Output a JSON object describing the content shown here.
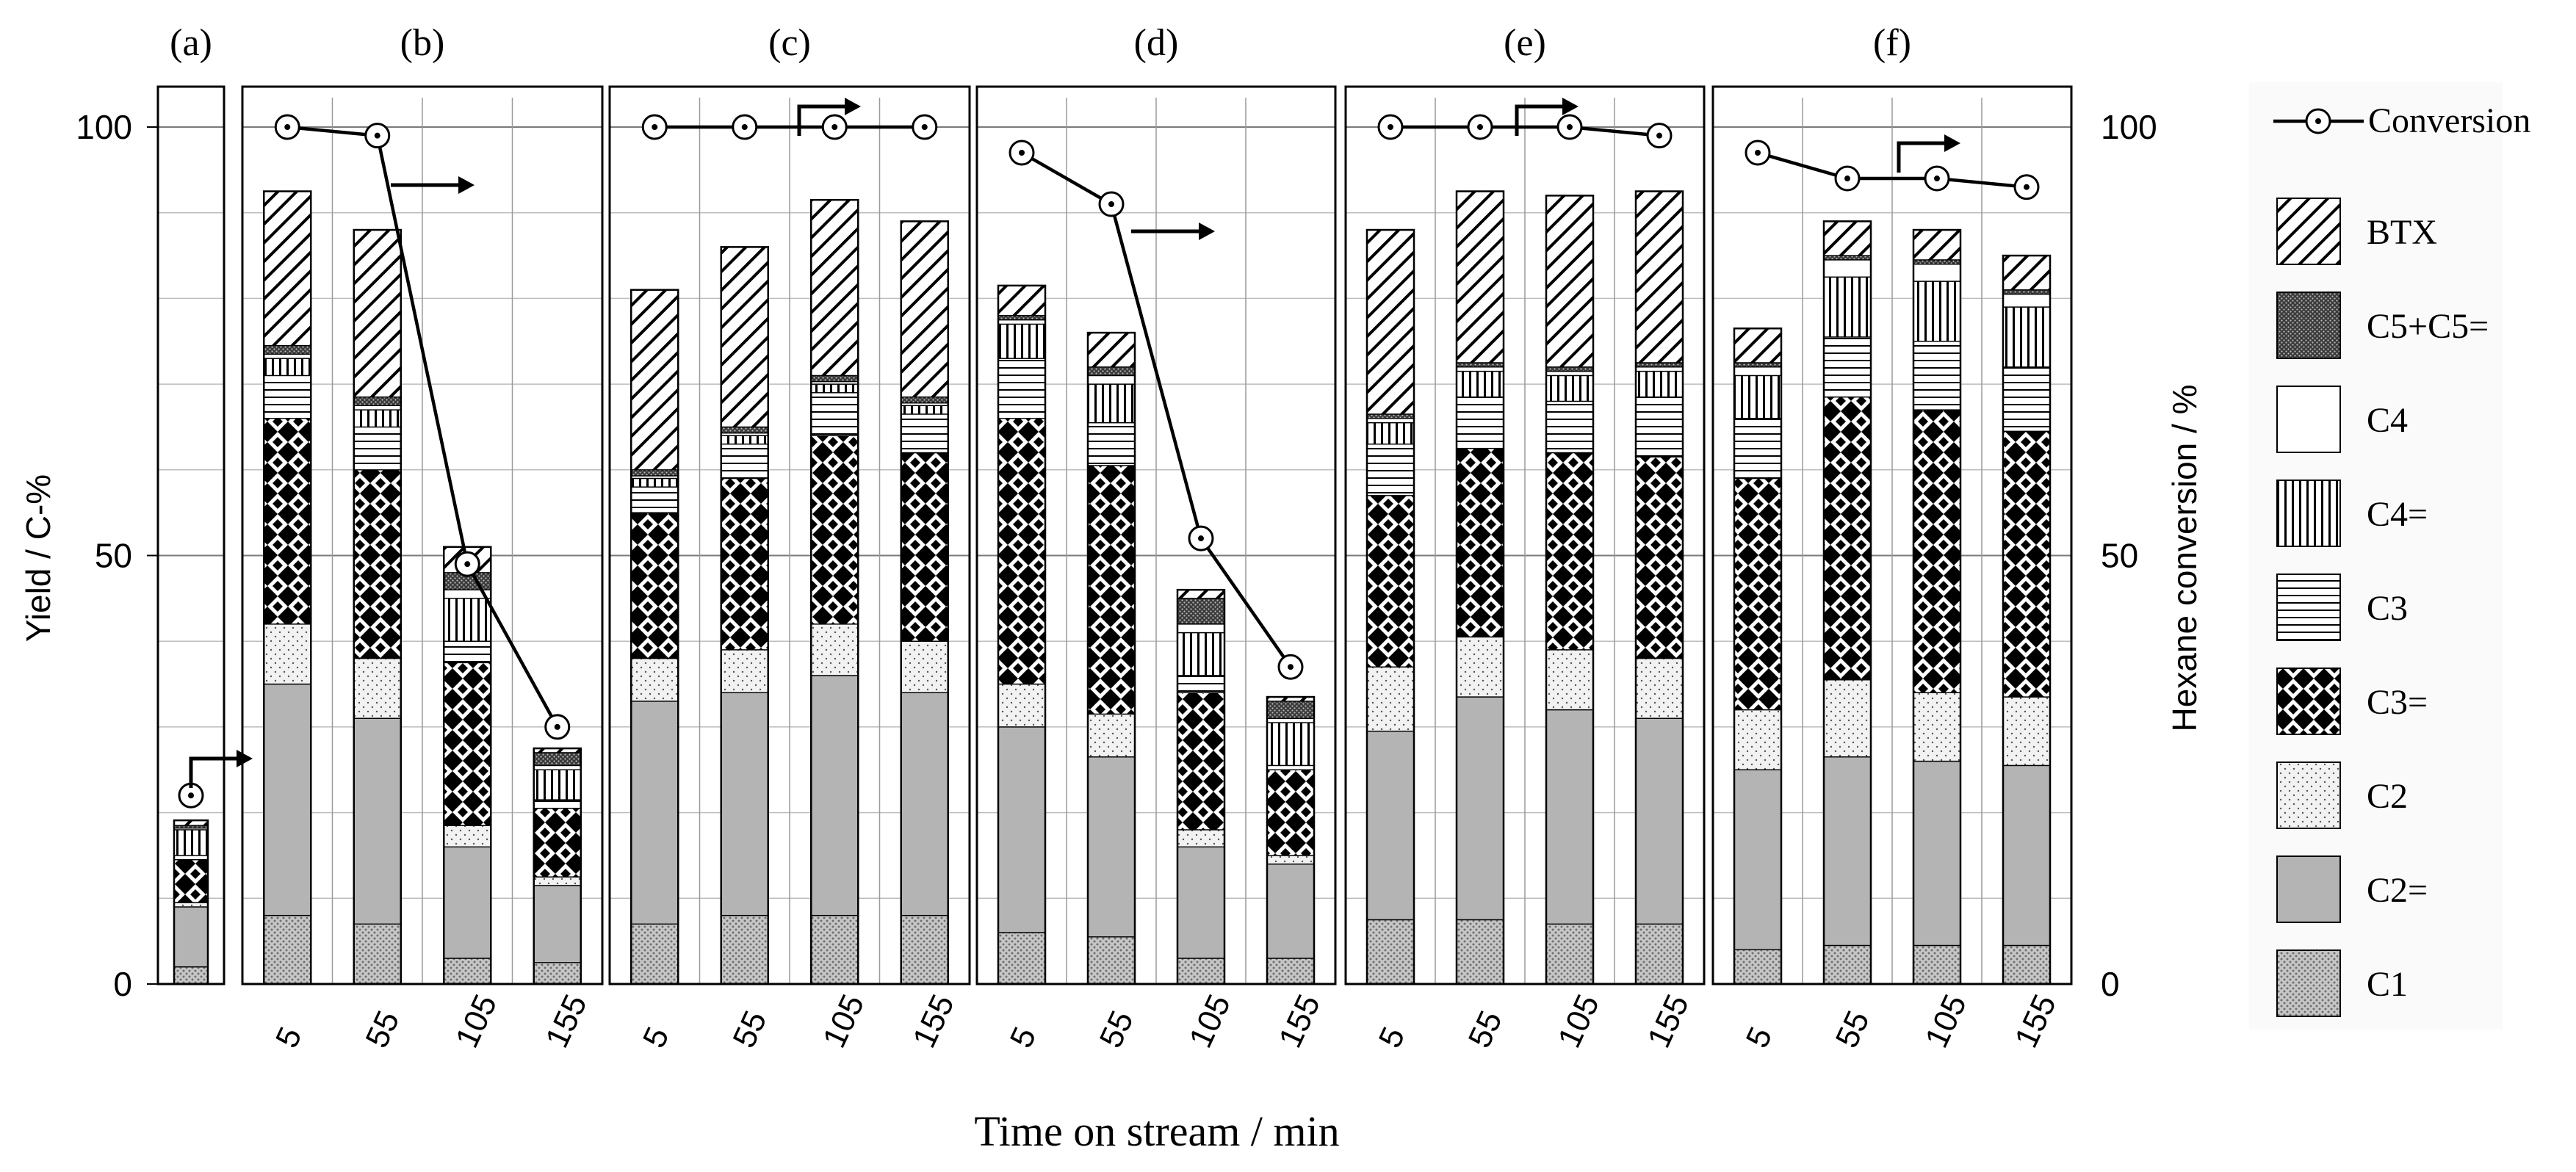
{
  "chart_data": {
    "type": "bar",
    "stacked": true,
    "xlabel": "Time on stream / min",
    "ylabel": "Yield / C-%",
    "y2label": "Hexane conversion / %",
    "ylim": [
      0,
      100
    ],
    "y2lim": [
      0,
      100
    ],
    "yticks": [
      "0",
      "50",
      "100"
    ],
    "y2ticks": [
      "0",
      "50",
      "100"
    ],
    "categories": [
      "5",
      "55",
      "105",
      "155"
    ],
    "components": [
      "C1",
      "C2=",
      "C2",
      "C3=",
      "C3",
      "C4=",
      "C4",
      "C5+C5=",
      "BTX"
    ],
    "legend": {
      "conversion_label": "Conversion",
      "placement": "right",
      "entries": [
        "BTX",
        "C5+C5=",
        "C4",
        "C4=",
        "C3",
        "C3=",
        "C2",
        "C2=",
        "C1"
      ]
    },
    "colors": {
      "C1": "#c6c6c6",
      "C2=": "#b4b4b4",
      "C2": "#f2f2f2",
      "C3": "#ffffff",
      "C4": "#ffffff",
      "BTX": "#ffffff",
      "line": "#000000",
      "grid": "#bdbdbd"
    },
    "panels": [
      {
        "label": "(a)",
        "bars": [
          {
            "time": "",
            "conversion": 22,
            "stack": [
              2,
              7,
              0.5,
              5,
              0.5,
              3,
              0.2,
              0.3,
              0.6
            ]
          }
        ]
      },
      {
        "label": "(b)",
        "bars": [
          {
            "time": "5",
            "conversion": 100,
            "stack": [
              8,
              27,
              7,
              24,
              5,
              2,
              0.5,
              1,
              18
            ]
          },
          {
            "time": "55",
            "conversion": 99,
            "stack": [
              7,
              24,
              7,
              22,
              5,
              2,
              0.5,
              1,
              19.5
            ]
          },
          {
            "time": "105",
            "conversion": 49,
            "stack": [
              3,
              13,
              2.5,
              19,
              2.5,
              5,
              1,
              2,
              3
            ]
          },
          {
            "time": "155",
            "conversion": 30,
            "stack": [
              2.5,
              9,
              1,
              8,
              1,
              3.5,
              0.5,
              1.5,
              0.5
            ]
          }
        ]
      },
      {
        "label": "(c)",
        "bars": [
          {
            "time": "5",
            "conversion": 100,
            "stack": [
              7,
              26,
              5,
              17,
              3,
              1,
              0.3,
              0.7,
              21
            ]
          },
          {
            "time": "55",
            "conversion": 100,
            "stack": [
              8,
              26,
              5,
              20,
              4,
              1,
              0.3,
              0.7,
              21
            ]
          },
          {
            "time": "105",
            "conversion": 100,
            "stack": [
              8,
              28,
              6,
              22,
              5,
              1,
              0.3,
              0.7,
              20.5
            ]
          },
          {
            "time": "155",
            "conversion": 100,
            "stack": [
              8,
              26,
              6,
              22,
              4.5,
              1,
              0.3,
              0.7,
              20.5
            ]
          }
        ]
      },
      {
        "label": "(d)",
        "bars": [
          {
            "time": "5",
            "conversion": 97,
            "stack": [
              6,
              24,
              5,
              31,
              7,
              4,
              0.5,
              0.5,
              3.5
            ]
          },
          {
            "time": "55",
            "conversion": 91,
            "stack": [
              5.5,
              21,
              5,
              29,
              5,
              4.5,
              1,
              1,
              4
            ]
          },
          {
            "time": "105",
            "conversion": 52,
            "stack": [
              3,
              13,
              2,
              16,
              2,
              5,
              1,
              3,
              1
            ]
          },
          {
            "time": "155",
            "conversion": 37,
            "stack": [
              3,
              11,
              1,
              10,
              0.5,
              5,
              0.5,
              2,
              0.5
            ]
          }
        ]
      },
      {
        "label": "(e)",
        "bars": [
          {
            "time": "5",
            "conversion": 100,
            "stack": [
              7.5,
              22,
              7.5,
              20,
              6,
              2.5,
              0.5,
              0.5,
              21.5
            ]
          },
          {
            "time": "55",
            "conversion": 100,
            "stack": [
              7.5,
              26,
              7,
              22,
              6,
              3,
              0.5,
              0.5,
              20
            ]
          },
          {
            "time": "105",
            "conversion": 100,
            "stack": [
              7,
              25,
              7,
              23,
              6,
              3,
              0.5,
              0.5,
              20
            ]
          },
          {
            "time": "155",
            "conversion": 99,
            "stack": [
              7,
              24,
              7,
              23.5,
              7,
              3,
              0.5,
              0.5,
              20
            ]
          }
        ]
      },
      {
        "label": "(f)",
        "bars": [
          {
            "time": "5",
            "conversion": 97,
            "stack": [
              4,
              21,
              7,
              27,
              7,
              5,
              1,
              0.5,
              4
            ]
          },
          {
            "time": "55",
            "conversion": 94,
            "stack": [
              4.5,
              22,
              9,
              33,
              7,
              7,
              2,
              0.5,
              4
            ]
          },
          {
            "time": "105",
            "conversion": 94,
            "stack": [
              4.5,
              21.5,
              8,
              33,
              8,
              7,
              2,
              0.5,
              3.5
            ]
          },
          {
            "time": "155",
            "conversion": 93,
            "stack": [
              4.5,
              21,
              8,
              31,
              7.5,
              7,
              1.5,
              0.5,
              4
            ]
          }
        ]
      }
    ]
  }
}
